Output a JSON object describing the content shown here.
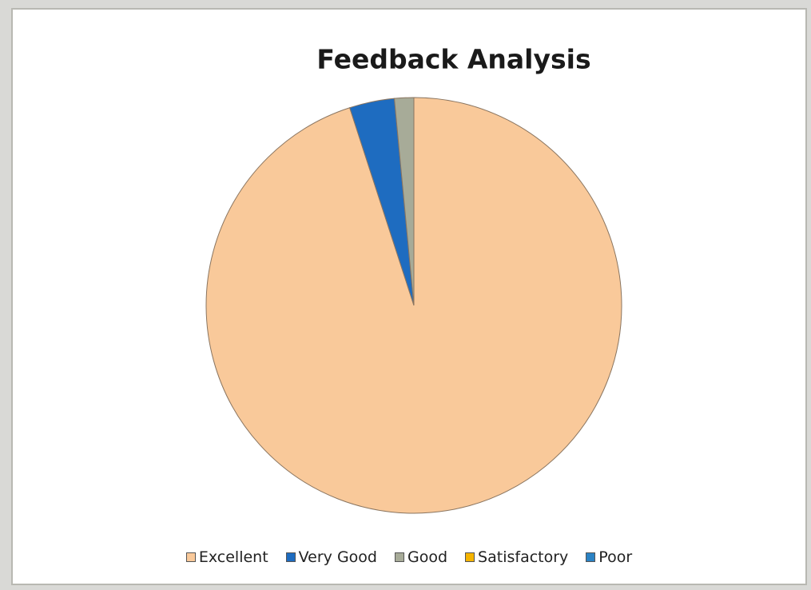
{
  "chart_data": {
    "type": "pie",
    "title": "Feedback Analysis",
    "categories": [
      "Excellent",
      "Very Good",
      "Good",
      "Satisfactory",
      "Poor"
    ],
    "values": [
      95,
      3.5,
      1.5,
      0,
      0
    ],
    "colors": [
      "#f9c99a",
      "#1e6cc0",
      "#a7ab98",
      "#f5b400",
      "#2a82c4"
    ],
    "legend": "bottom"
  }
}
